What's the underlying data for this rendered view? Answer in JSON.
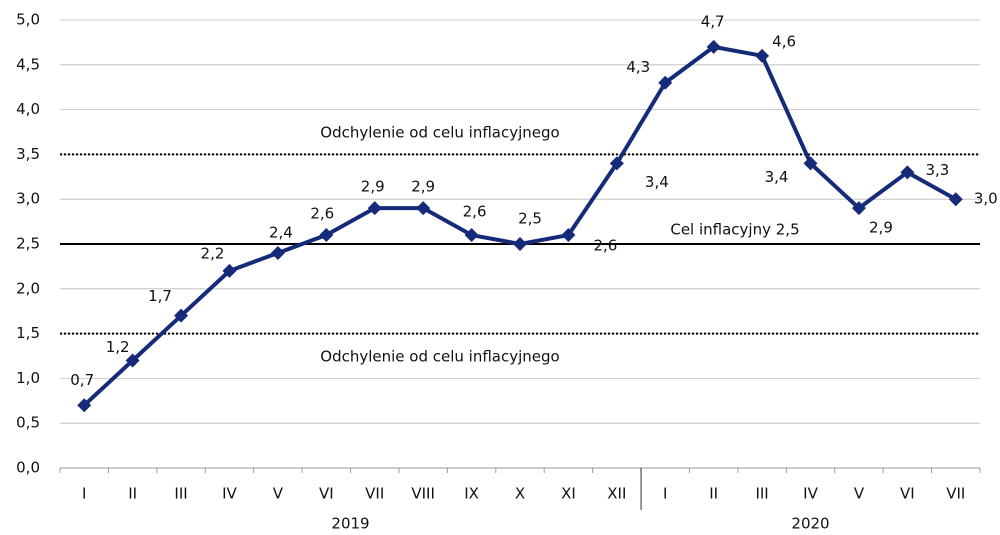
{
  "chart_data": {
    "type": "line",
    "categories": [
      "I",
      "II",
      "III",
      "IV",
      "V",
      "VI",
      "VII",
      "VIII",
      "IX",
      "X",
      "XI",
      "XII",
      "I",
      "II",
      "III",
      "IV",
      "V",
      "VI",
      "VII"
    ],
    "x_groups": [
      {
        "label": "2019",
        "count": 12
      },
      {
        "label": "2020",
        "count": 7
      }
    ],
    "series": [
      {
        "color": "#162a7a",
        "values": [
          0.7,
          1.2,
          1.7,
          2.2,
          2.4,
          2.6,
          2.9,
          2.9,
          2.6,
          2.5,
          2.6,
          3.4,
          4.3,
          4.7,
          4.6,
          3.4,
          2.9,
          3.3,
          3.0
        ],
        "value_labels": [
          "0,7",
          "1,2",
          "1,7",
          "2,2",
          "2,4",
          "2,6",
          "2,9",
          "2,9",
          "2,6",
          "2,5",
          "2,6",
          "3,4",
          "4,3",
          "4,7",
          "4,6",
          "3,4",
          "2,9",
          "3,3",
          "3,0"
        ]
      }
    ],
    "ylim": [
      0,
      5
    ],
    "yticks": [
      {
        "value": 0,
        "label": "0,0"
      },
      {
        "value": 0.5,
        "label": "0,5"
      },
      {
        "value": 1,
        "label": "1,0"
      },
      {
        "value": 1.5,
        "label": "1,5"
      },
      {
        "value": 2,
        "label": "2,0"
      },
      {
        "value": 2.5,
        "label": "2,5"
      },
      {
        "value": 3,
        "label": "3,0"
      },
      {
        "value": 3.5,
        "label": "3,5"
      },
      {
        "value": 4,
        "label": "4,0"
      },
      {
        "value": 4.5,
        "label": "4,5"
      },
      {
        "value": 5,
        "label": "5,0"
      }
    ],
    "grid": true,
    "reference_lines": [
      {
        "value": 3.5,
        "label": "Odchylenie od celu inflacyjnego",
        "style": "dotted"
      },
      {
        "value": 2.5,
        "label": "Cel inflacyjny 2,5",
        "style": "solid"
      },
      {
        "value": 1.5,
        "label": "Odchylenie od celu inflacyjnego",
        "style": "dotted"
      }
    ]
  }
}
